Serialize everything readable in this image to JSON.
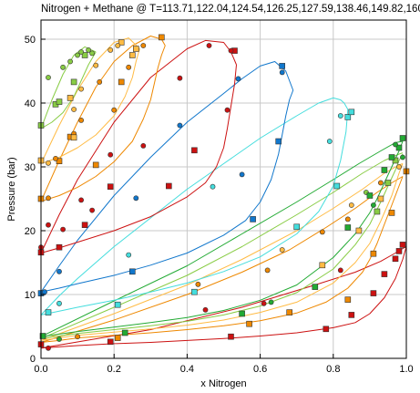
{
  "chart_data": {
    "type": "scatter",
    "title": "Nitrogen + Methane @ T=113.71,122.04,124.54,126.25,127.59,138.46,149.82,160.93,1",
    "xlabel": "x Nitrogen",
    "ylabel": "Pressure (bar)",
    "xlim": [
      0.0,
      1.0
    ],
    "ylim": [
      0,
      53
    ],
    "x_ticks": [
      "0.0",
      "0.2",
      "0.4",
      "0.6",
      "0.8",
      "1.0"
    ],
    "y_ticks": [
      "0",
      "10",
      "20",
      "30",
      "40",
      "50"
    ],
    "grid": true,
    "series": [
      {
        "color": "#cc1111",
        "bubble_x": [
          0.0,
          0.05,
          0.1,
          0.2,
          0.3,
          0.4,
          0.5,
          0.6,
          0.7,
          0.8,
          0.86,
          0.9,
          0.94,
          0.97,
          0.99,
          1.0
        ],
        "bubble_y": [
          1.6,
          1.8,
          2.0,
          2.3,
          2.5,
          2.8,
          3.1,
          3.5,
          4.0,
          4.8,
          5.6,
          7.0,
          9.5,
          12.5,
          15.5,
          17.5
        ],
        "dew_x": [
          0.0,
          0.3,
          0.55,
          0.75,
          0.86,
          0.93,
          0.97,
          0.99,
          1.0
        ],
        "dew_y": [
          1.6,
          4.5,
          8.0,
          11.5,
          13.5,
          15.2,
          16.5,
          17.2,
          17.5
        ],
        "squares_x": [
          0.0,
          0.19,
          0.52,
          0.78,
          0.85,
          0.91,
          0.94,
          0.97,
          0.98,
          0.99
        ],
        "squares_y": [
          2.2,
          2.6,
          3.4,
          4.6,
          6.8,
          10.2,
          13.2,
          15.6,
          16.8,
          17.8
        ],
        "circles_x": [
          0.02,
          0.45,
          0.61,
          0.82
        ],
        "circles_y": [
          1.6,
          7.6,
          8.6,
          13.8
        ]
      },
      {
        "color": "#ee8800",
        "bubble_x": [
          0.0,
          0.05,
          0.1,
          0.2,
          0.3,
          0.4,
          0.5,
          0.6,
          0.7,
          0.78,
          0.84,
          0.88,
          0.9,
          0.92,
          0.94,
          0.96,
          0.98,
          0.99
        ],
        "bubble_y": [
          2.5,
          2.8,
          3.2,
          3.6,
          4.0,
          4.5,
          5.1,
          5.9,
          7.1,
          8.8,
          11.0,
          13.5,
          15.5,
          18.0,
          21.0,
          24.0,
          27.0,
          28.5
        ],
        "dew_x": [
          0.0,
          0.2,
          0.4,
          0.55,
          0.68,
          0.78,
          0.86,
          0.92,
          0.96,
          0.99
        ],
        "dew_y": [
          2.5,
          6.0,
          10.0,
          13.5,
          17.0,
          20.5,
          23.5,
          26.0,
          27.5,
          28.5
        ],
        "squares_x": [
          0.21,
          0.57,
          0.68,
          0.84,
          0.91,
          0.96,
          1.0
        ],
        "squares_y": [
          3.2,
          5.4,
          7.2,
          9.2,
          16.4,
          22.8,
          29.3
        ],
        "circles_x": [
          0.1,
          0.43,
          0.62,
          0.77,
          0.84,
          0.93
        ],
        "circles_y": [
          3.4,
          11.6,
          13.8,
          19.8,
          21.8,
          27.5
        ]
      },
      {
        "color": "#ffbb44",
        "bubble_x": [
          0.0,
          0.05,
          0.1,
          0.2,
          0.3,
          0.4,
          0.5,
          0.6,
          0.7,
          0.8,
          0.86,
          0.9,
          0.93,
          0.96,
          0.98,
          0.99
        ],
        "bubble_y": [
          2.8,
          3.2,
          3.6,
          4.1,
          4.6,
          5.2,
          6.0,
          7.2,
          8.8,
          11.8,
          15.0,
          18.0,
          21.5,
          25.5,
          29.0,
          30.5
        ],
        "dew_x": [
          0.0,
          0.2,
          0.4,
          0.55,
          0.7,
          0.8,
          0.88,
          0.94,
          0.98,
          0.99
        ],
        "dew_y": [
          2.8,
          7.0,
          11.5,
          15.5,
          20.0,
          23.5,
          26.5,
          29.0,
          30.3,
          30.5
        ],
        "squares_x": [
          0.77,
          0.87,
          0.93
        ],
        "squares_y": [
          14.6,
          20.0,
          25.0
        ],
        "circles_x": [
          0.66,
          0.85,
          0.98
        ],
        "circles_y": [
          17.0,
          24.0,
          30.0
        ]
      },
      {
        "color": "#88cc44",
        "bubble_x": [
          0.0,
          0.05,
          0.1,
          0.2,
          0.3,
          0.4,
          0.5,
          0.6,
          0.7,
          0.8,
          0.86,
          0.9,
          0.93,
          0.95,
          0.97,
          0.98,
          0.99
        ],
        "bubble_y": [
          3.1,
          3.5,
          3.9,
          4.5,
          5.1,
          5.8,
          6.8,
          8.2,
          10.3,
          14.0,
          17.8,
          21.0,
          24.5,
          27.0,
          29.5,
          31.0,
          32.0
        ],
        "dew_x": [
          0.0,
          0.2,
          0.4,
          0.55,
          0.7,
          0.8,
          0.88,
          0.94,
          0.98,
          0.99
        ],
        "dew_y": [
          3.1,
          8.0,
          13.0,
          17.5,
          22.5,
          26.0,
          29.0,
          31.0,
          32.0,
          32.2
        ],
        "squares_x": [
          0.92,
          0.95,
          0.97
        ],
        "squares_y": [
          23.0,
          27.5,
          31.0
        ],
        "circles_x": [
          0.89,
          0.96
        ],
        "circles_y": [
          26.0,
          31.5
        ]
      },
      {
        "color": "#22aa33",
        "bubble_x": [
          0.0,
          0.05,
          0.1,
          0.2,
          0.3,
          0.4,
          0.5,
          0.6,
          0.7,
          0.8,
          0.86,
          0.9,
          0.92,
          0.94,
          0.96,
          0.98,
          0.99
        ],
        "bubble_y": [
          3.4,
          3.8,
          4.2,
          4.9,
          5.6,
          6.4,
          7.5,
          9.1,
          11.5,
          15.8,
          19.5,
          22.8,
          25.0,
          27.5,
          30.0,
          32.5,
          34.0
        ],
        "dew_x": [
          0.0,
          0.2,
          0.4,
          0.55,
          0.7,
          0.8,
          0.87,
          0.93,
          0.97,
          0.99
        ],
        "dew_y": [
          3.4,
          9.0,
          14.5,
          19.5,
          24.5,
          28.0,
          30.5,
          32.5,
          33.8,
          34.0
        ],
        "squares_x": [
          0.005,
          0.23,
          0.55,
          0.75,
          0.84,
          0.9,
          0.94,
          0.96,
          0.98,
          0.99
        ],
        "squares_y": [
          3.5,
          4.0,
          7.0,
          11.2,
          20.5,
          25.5,
          29.5,
          31.5,
          33.0,
          34.5
        ],
        "circles_x": [
          0.05,
          0.63,
          0.91,
          0.97,
          0.99
        ],
        "circles_y": [
          3.0,
          8.8,
          24.0,
          33.5,
          31.5
        ]
      },
      {
        "color": "#44dddd",
        "bubble_x": [
          0.0,
          0.05,
          0.1,
          0.2,
          0.3,
          0.4,
          0.5,
          0.6,
          0.7,
          0.76,
          0.8,
          0.82,
          0.835,
          0.84
        ],
        "bubble_y": [
          6.8,
          7.4,
          8.0,
          9.1,
          10.4,
          11.8,
          13.6,
          15.9,
          19.5,
          23.0,
          27.0,
          31.0,
          35.5,
          39.0
        ],
        "dew_x": [
          0.0,
          0.05,
          0.1,
          0.2,
          0.3,
          0.4,
          0.5,
          0.6,
          0.7,
          0.76,
          0.8,
          0.82,
          0.83,
          0.84
        ],
        "dew_y": [
          6.8,
          9.8,
          12.5,
          17.5,
          22.0,
          26.5,
          30.5,
          34.5,
          38.0,
          40.0,
          40.8,
          40.5,
          40.0,
          39.0
        ],
        "squares_x": [
          0.02,
          0.21,
          0.42,
          0.7,
          0.81,
          0.84,
          0.85
        ],
        "squares_y": [
          7.2,
          8.4,
          10.4,
          20.6,
          27.0,
          37.8,
          38.6
        ],
        "circles_x": [
          0.05,
          0.24,
          0.47,
          0.79,
          0.82
        ],
        "circles_y": [
          8.6,
          16.2,
          26.9,
          34.0,
          38.0
        ]
      },
      {
        "color": "#1177cc",
        "bubble_x": [
          0.0,
          0.05,
          0.1,
          0.2,
          0.3,
          0.4,
          0.5,
          0.56,
          0.6,
          0.63,
          0.65,
          0.66,
          0.67,
          0.68,
          0.69
        ],
        "bubble_y": [
          10.4,
          11.0,
          11.7,
          13.0,
          14.6,
          16.5,
          19.3,
          21.6,
          24.5,
          28.0,
          32.0,
          35.0,
          38.0,
          40.5,
          42.0
        ],
        "dew_x": [
          0.0,
          0.05,
          0.1,
          0.2,
          0.3,
          0.4,
          0.5,
          0.55,
          0.6,
          0.64,
          0.67,
          0.69
        ],
        "dew_y": [
          10.4,
          14.5,
          18.5,
          25.5,
          31.5,
          37.0,
          41.5,
          43.8,
          45.8,
          46.5,
          45.0,
          42.0
        ],
        "squares_x": [
          0.0,
          0.25,
          0.58,
          0.65,
          0.66
        ],
        "squares_y": [
          10.2,
          13.6,
          21.8,
          34.0,
          45.8
        ],
        "circles_x": [
          0.01,
          0.05,
          0.26,
          0.38,
          0.54,
          0.55,
          0.66
        ],
        "circles_y": [
          10.4,
          13.6,
          25.1,
          36.5,
          43.8,
          28.8,
          44.8
        ]
      },
      {
        "color": "#cc1111",
        "bubble_x": [
          0.0,
          0.05,
          0.1,
          0.2,
          0.3,
          0.4,
          0.45,
          0.48,
          0.5,
          0.51,
          0.52,
          0.53,
          0.535
        ],
        "bubble_y": [
          16.5,
          17.3,
          18.2,
          20.0,
          22.2,
          25.3,
          27.5,
          30.0,
          33.0,
          36.0,
          39.5,
          43.0,
          46.0
        ],
        "dew_x": [
          0.0,
          0.05,
          0.1,
          0.2,
          0.3,
          0.4,
          0.45,
          0.5,
          0.52,
          0.535
        ],
        "dew_y": [
          16.5,
          22.5,
          28.0,
          37.0,
          44.0,
          48.5,
          49.8,
          49.5,
          48.0,
          46.0
        ],
        "squares_x": [
          0.0,
          0.05,
          0.12,
          0.19,
          0.35,
          0.42,
          0.53
        ],
        "squares_y": [
          16.6,
          17.4,
          20.9,
          26.9,
          27.0,
          32.6,
          48.2
        ],
        "circles_x": [
          0.0,
          0.02,
          0.06,
          0.11,
          0.14,
          0.19,
          0.28,
          0.38,
          0.46,
          0.51,
          0.52
        ],
        "circles_y": [
          17.4,
          20.9,
          20.2,
          24.8,
          23.2,
          31.9,
          33.3,
          43.9,
          49.0,
          38.9,
          48.2
        ]
      },
      {
        "color": "#ee8800",
        "bubble_x": [
          0.0,
          0.05,
          0.1,
          0.15,
          0.2,
          0.25,
          0.28,
          0.3,
          0.31,
          0.32,
          0.33,
          0.34
        ],
        "bubble_y": [
          24.6,
          25.5,
          26.8,
          28.5,
          30.8,
          34.0,
          37.5,
          40.5,
          43.0,
          45.5,
          47.5,
          49.0
        ],
        "dew_x": [
          0.0,
          0.05,
          0.1,
          0.15,
          0.2,
          0.25,
          0.3,
          0.33,
          0.34
        ],
        "dew_y": [
          24.6,
          31.0,
          37.0,
          42.5,
          46.5,
          49.0,
          50.5,
          50.0,
          49.0
        ],
        "squares_x": [
          0.0,
          0.05,
          0.08,
          0.15,
          0.22,
          0.33
        ],
        "squares_y": [
          25.0,
          30.9,
          34.7,
          30.3,
          43.3,
          50.3
        ],
        "circles_x": [
          0.02,
          0.04,
          0.09,
          0.11,
          0.16,
          0.2,
          0.24,
          0.28
        ],
        "circles_y": [
          25.1,
          31.3,
          35.2,
          37.3,
          43.3,
          38.9,
          45.6,
          49.0
        ]
      },
      {
        "color": "#ffbb44",
        "bubble_x": [
          0.0,
          0.05,
          0.1,
          0.15,
          0.2,
          0.23,
          0.25,
          0.26,
          0.27
        ],
        "bubble_y": [
          30.5,
          31.5,
          33.0,
          35.0,
          38.0,
          41.0,
          44.0,
          46.5,
          48.5
        ],
        "dew_x": [
          0.0,
          0.05,
          0.1,
          0.15,
          0.2,
          0.24,
          0.27
        ],
        "dew_y": [
          30.5,
          36.5,
          42.0,
          46.5,
          49.5,
          50.2,
          48.5
        ],
        "squares_x": [
          0.0,
          0.08,
          0.09,
          0.22,
          0.25,
          0.26
        ],
        "squares_y": [
          31.0,
          40.8,
          34.6,
          49.5,
          47.5,
          48.5
        ],
        "circles_x": [
          0.02,
          0.09,
          0.11,
          0.15,
          0.19,
          0.21
        ],
        "circles_y": [
          30.6,
          39.0,
          42.2,
          45.9,
          48.3,
          49.0
        ]
      },
      {
        "color": "#88cc44",
        "bubble_x": [
          0.0,
          0.03,
          0.06,
          0.09,
          0.11,
          0.13,
          0.15
        ],
        "bubble_y": [
          36.0,
          37.0,
          38.5,
          41.0,
          43.5,
          46.0,
          48.0
        ],
        "dew_x": [
          0.0,
          0.03,
          0.06,
          0.09,
          0.12,
          0.15
        ],
        "dew_y": [
          36.0,
          40.5,
          44.5,
          47.5,
          48.8,
          48.0
        ],
        "squares_x": [
          0.0,
          0.04,
          0.05,
          0.09,
          0.12
        ],
        "squares_y": [
          36.5,
          39.8,
          40.2,
          43.3,
          47.5
        ],
        "circles_x": [
          0.02,
          0.06,
          0.08,
          0.1,
          0.11,
          0.13,
          0.14
        ],
        "circles_y": [
          44.0,
          45.6,
          46.5,
          47.5,
          48.0,
          48.3,
          47.8
        ]
      }
    ]
  }
}
